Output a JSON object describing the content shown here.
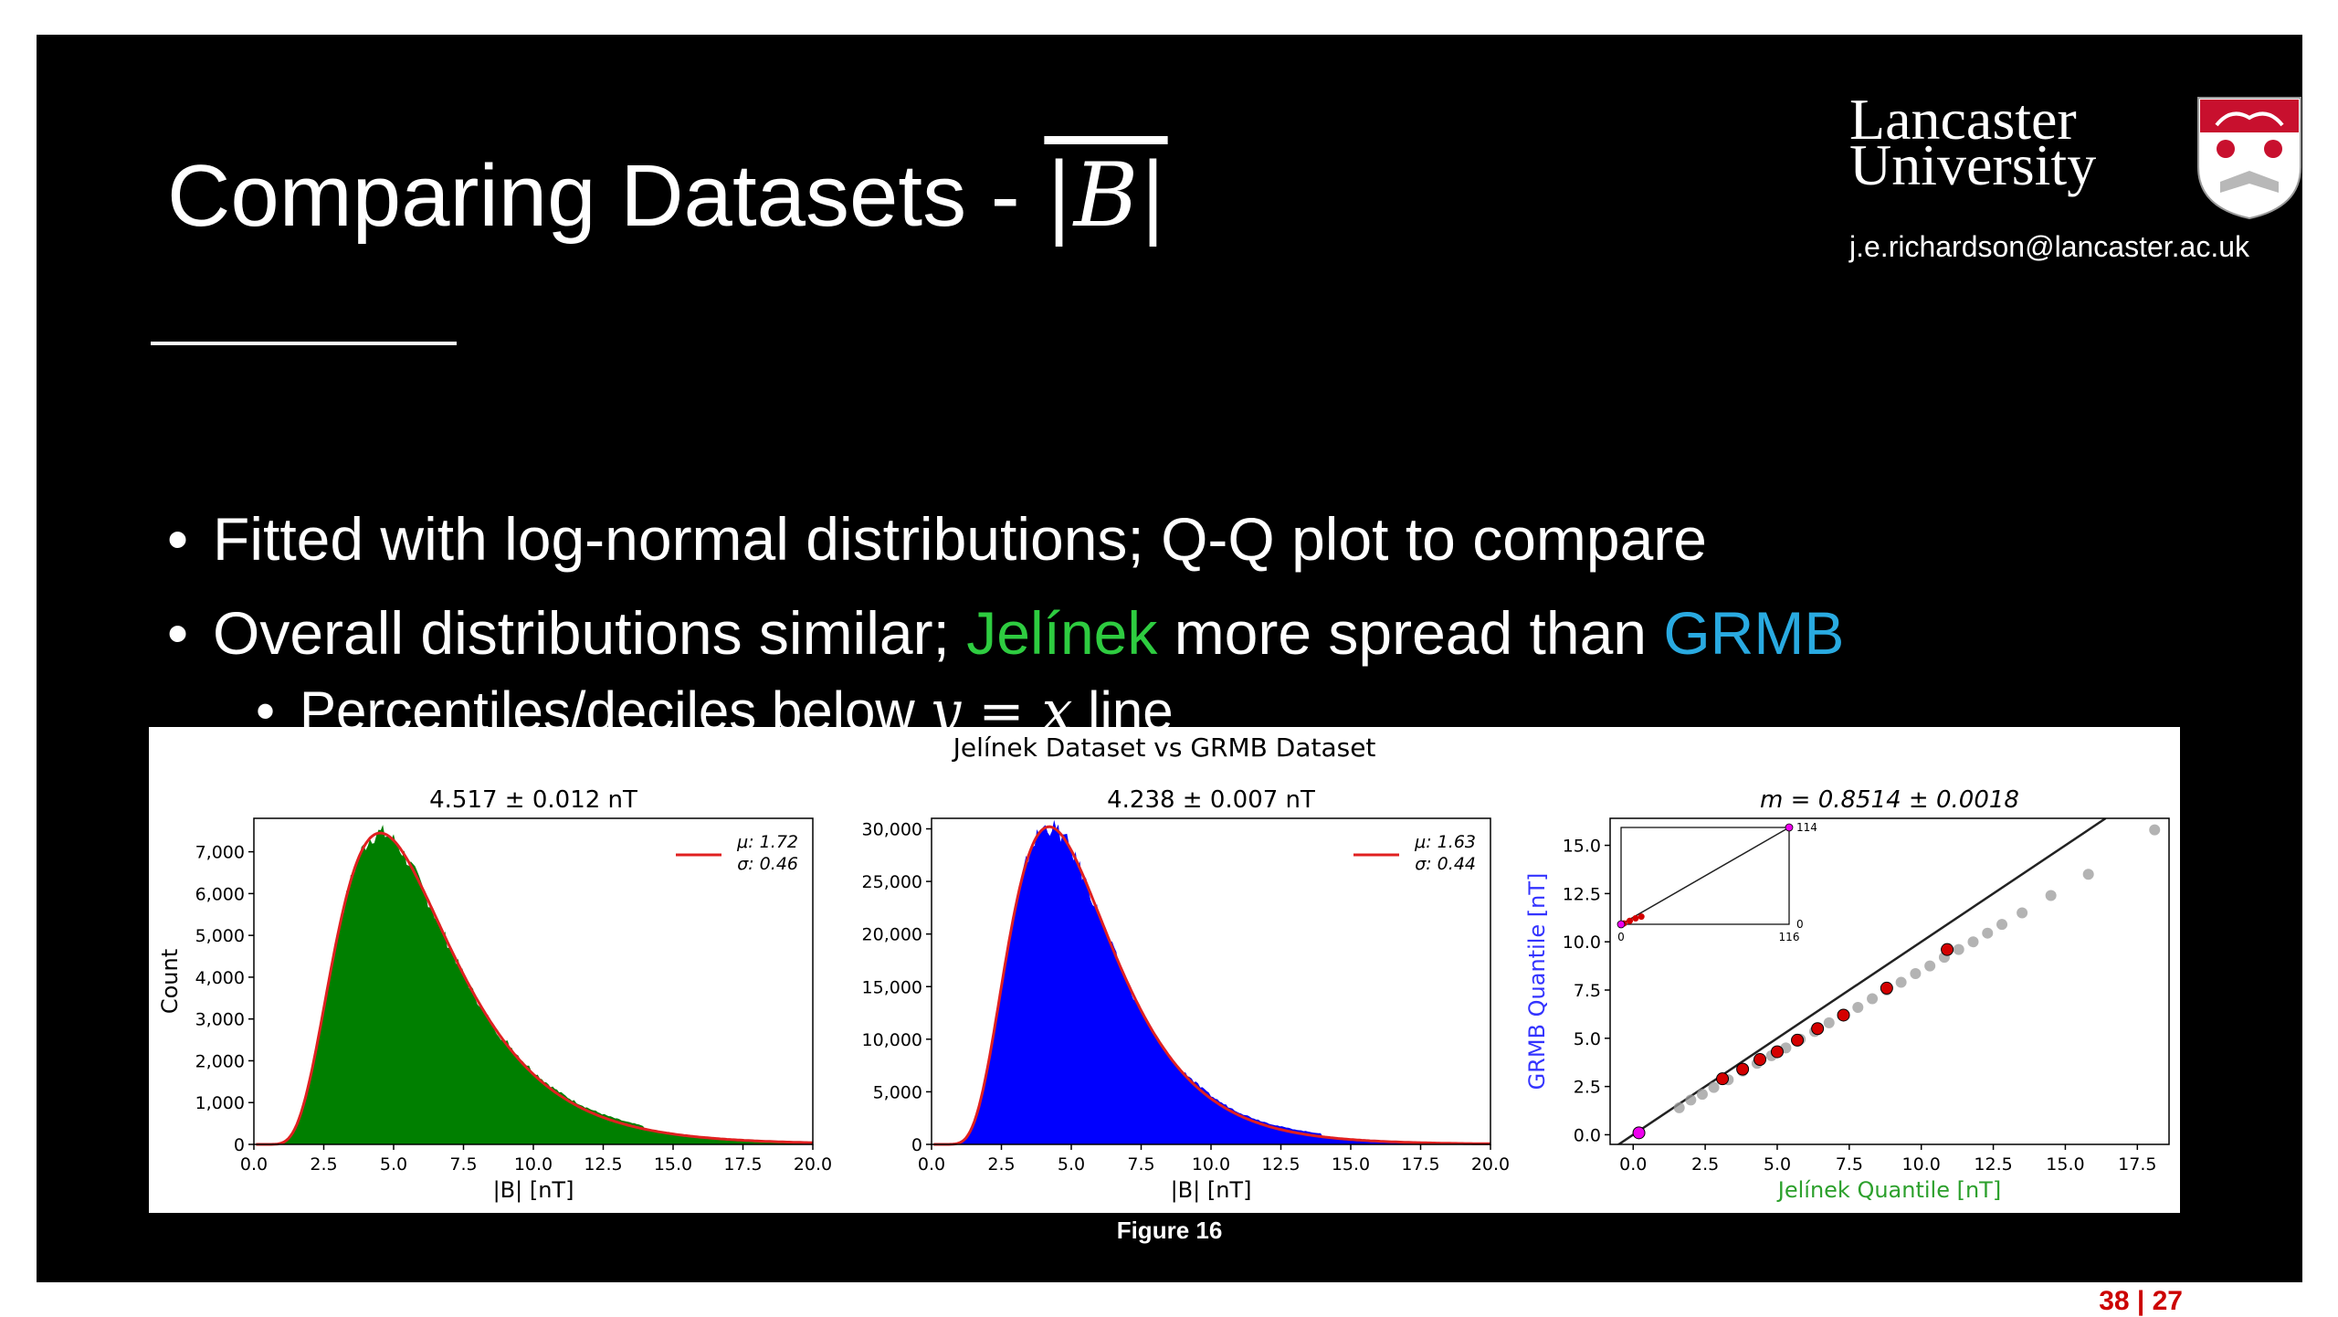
{
  "slide": {
    "title_prefix": "Comparing Datasets - ",
    "title_symbol": "|B|",
    "logo": {
      "line1": "Lancaster",
      "line2": "University",
      "crest": "lancaster-crest-icon"
    },
    "email": "j.e.richardson@lancaster.ac.uk",
    "bullets": [
      {
        "text": "Fitted with log-normal distributions; Q-Q plot to compare"
      },
      {
        "pre": "Overall distributions similar; ",
        "green": "Jelínek",
        "mid": " more spread than ",
        "blue": "GRMB"
      },
      {
        "pre": "Percentiles/deciles below ",
        "math": "y = x",
        "post": " line"
      }
    ],
    "caption": "Figure 16",
    "page": "38 | 27",
    "colors": {
      "green": "#2ecc40",
      "blue": "#29aae1",
      "page": "#cc0000"
    }
  },
  "chart_data": [
    {
      "type": "bar",
      "suptitle": "Jelínek Dataset vs GRMB Dataset",
      "title": "4.517 ± 0.012 nT",
      "xlabel": "|B| [nT]",
      "ylabel": "Count",
      "xlim": [
        0,
        20
      ],
      "ylim": [
        0,
        7800
      ],
      "xticks": [
        "0.0",
        "2.5",
        "5.0",
        "7.5",
        "10.0",
        "12.5",
        "15.0",
        "17.5",
        "20.0"
      ],
      "yticks": [
        "0",
        "1,000",
        "2,000",
        "3,000",
        "4,000",
        "5,000",
        "6,000",
        "7,000"
      ],
      "fill_color": "#007f00",
      "fit_color": "#e02020",
      "legend": {
        "mu": "μ: 1.72",
        "sigma": "σ: 0.46",
        "position": "top-right"
      },
      "fit_params": {
        "mu": 1.72,
        "sigma": 0.46
      },
      "peak": 7450
    },
    {
      "type": "bar",
      "title": "4.238 ± 0.007 nT",
      "xlabel": "|B| [nT]",
      "xlim": [
        0,
        20
      ],
      "ylim": [
        0,
        31000
      ],
      "xticks": [
        "0.0",
        "2.5",
        "5.0",
        "7.5",
        "10.0",
        "12.5",
        "15.0",
        "17.5",
        "20.0"
      ],
      "yticks": [
        "0",
        "5,000",
        "10,000",
        "15,000",
        "20,000",
        "25,000",
        "30,000"
      ],
      "fill_color": "#0000ff",
      "fit_color": "#e02020",
      "legend": {
        "mu": "μ: 1.63",
        "sigma": "σ: 0.44",
        "position": "top-right"
      },
      "fit_params": {
        "mu": 1.63,
        "sigma": 0.44
      },
      "peak": 30200
    },
    {
      "type": "scatter",
      "title": "m = 0.8514 ± 0.0018",
      "xlabel": "Jelínek Quantile [nT]",
      "ylabel": "GRMB Quantile [nT]",
      "xlabel_color": "#2ca02c",
      "ylabel_color": "#3333ff",
      "xlim": [
        -0.8,
        18.6
      ],
      "ylim": [
        -0.5,
        16.4
      ],
      "xticks": [
        "0.0",
        "2.5",
        "5.0",
        "7.5",
        "10.0",
        "12.5",
        "15.0",
        "17.5"
      ],
      "yticks": [
        "0.0",
        "2.5",
        "5.0",
        "7.5",
        "10.0",
        "12.5",
        "15.0"
      ],
      "gray_points": [
        [
          1.6,
          1.4
        ],
        [
          2.0,
          1.8
        ],
        [
          2.4,
          2.1
        ],
        [
          2.8,
          2.45
        ],
        [
          3.3,
          2.85
        ],
        [
          3.8,
          3.3
        ],
        [
          4.3,
          3.7
        ],
        [
          4.8,
          4.1
        ],
        [
          5.3,
          4.5
        ],
        [
          5.8,
          4.95
        ],
        [
          6.3,
          5.35
        ],
        [
          6.8,
          5.8
        ],
        [
          7.3,
          6.2
        ],
        [
          7.8,
          6.6
        ],
        [
          8.3,
          7.05
        ],
        [
          8.8,
          7.5
        ],
        [
          9.3,
          7.9
        ],
        [
          9.8,
          8.35
        ],
        [
          10.3,
          8.75
        ],
        [
          10.8,
          9.2
        ],
        [
          11.3,
          9.6
        ],
        [
          11.8,
          10.0
        ],
        [
          12.3,
          10.45
        ],
        [
          12.8,
          10.9
        ],
        [
          13.5,
          11.5
        ],
        [
          14.5,
          12.4
        ],
        [
          15.8,
          13.5
        ],
        [
          18.1,
          15.8
        ]
      ],
      "red_points": [
        [
          3.1,
          2.9
        ],
        [
          3.8,
          3.4
        ],
        [
          4.4,
          3.9
        ],
        [
          5.0,
          4.3
        ],
        [
          5.7,
          4.9
        ],
        [
          6.4,
          5.5
        ],
        [
          7.3,
          6.2
        ],
        [
          8.8,
          7.6
        ],
        [
          10.9,
          9.6
        ]
      ],
      "magenta_points": [
        [
          0.2,
          0.1
        ]
      ],
      "line": "y = x",
      "inset": {
        "xlim": [
          0,
          116
        ],
        "ylim": [
          0,
          114
        ],
        "xticks": [
          "0",
          "116"
        ],
        "yticks": [
          "0",
          "114"
        ],
        "magenta_points": [
          [
            0,
            0
          ],
          [
            116,
            114
          ]
        ]
      }
    }
  ]
}
